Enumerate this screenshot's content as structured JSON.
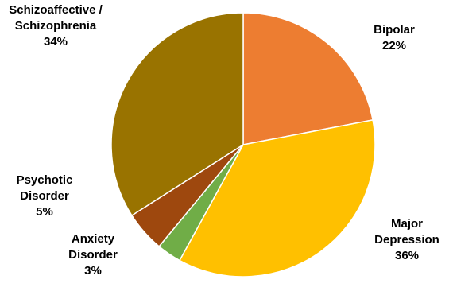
{
  "chart_data": {
    "type": "pie",
    "slices": [
      {
        "name": "Bipolar",
        "name_lines": [
          "Bipolar"
        ],
        "value": 22,
        "pct_label": "22%",
        "color": "#ED7D31"
      },
      {
        "name": "Major Depression",
        "name_lines": [
          "Major",
          "Depression"
        ],
        "value": 36,
        "pct_label": "36%",
        "color": "#FFC000"
      },
      {
        "name": "Anxiety Disorder",
        "name_lines": [
          "Anxiety",
          "Disorder"
        ],
        "value": 3,
        "pct_label": "3%",
        "color": "#70AD47"
      },
      {
        "name": "Psychotic Disorder",
        "name_lines": [
          "Psychotic",
          "Disorder"
        ],
        "value": 5,
        "pct_label": "5%",
        "color": "#9E480E"
      },
      {
        "name": "Schizoaffective / Schizophrenia",
        "name_lines": [
          "Schizoaffective /",
          "Schizophrenia"
        ],
        "value": 34,
        "pct_label": "34%",
        "color": "#997300"
      }
    ],
    "start": "12 o'clock",
    "direction": "clockwise",
    "legend": "none",
    "data_labels": "category name and percentage, outside the pie"
  }
}
